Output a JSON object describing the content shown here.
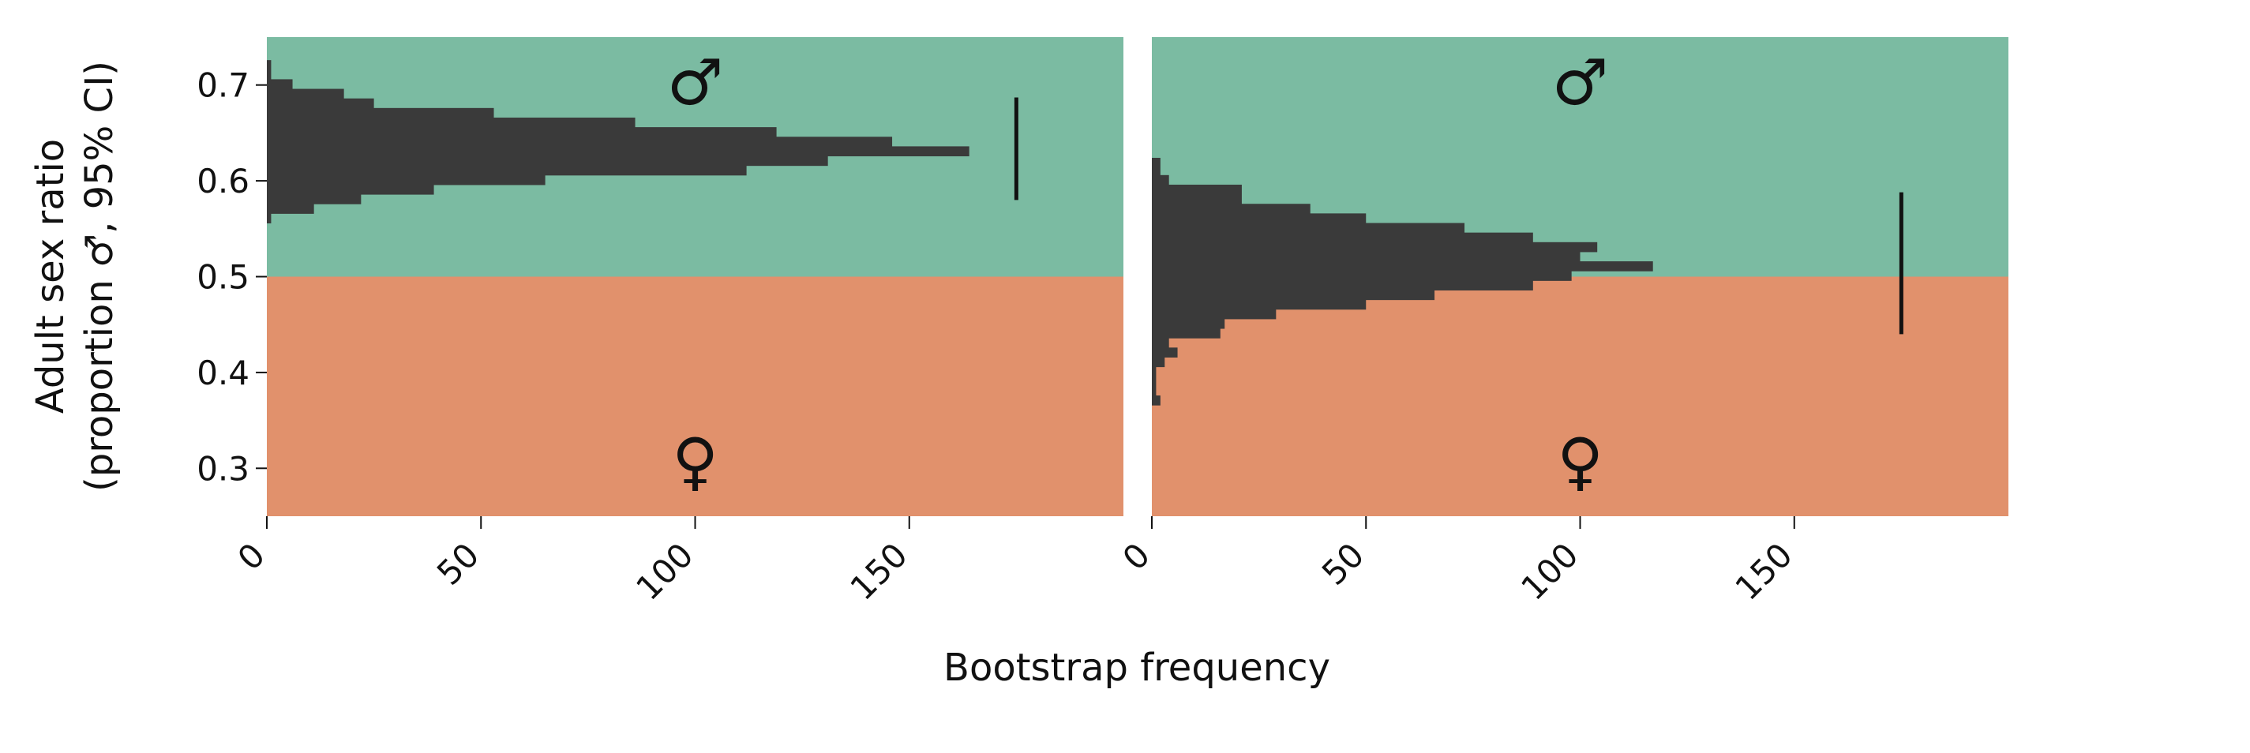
{
  "chart_data": {
    "type": "bar",
    "orientation": "horizontal",
    "xlabel": "Bootstrap frequency",
    "ylabel_line1": "Adult sex ratio",
    "ylabel_line2": "(proportion ♂, 95% CI)",
    "ylim": [
      0.25,
      0.75
    ],
    "y_ticks": [
      0.3,
      0.4,
      0.5,
      0.6,
      0.7
    ],
    "y_tick_labels": [
      "0.3",
      "0.4",
      "0.5",
      "0.6",
      "0.7"
    ],
    "xlim": [
      0,
      200
    ],
    "x_ticks": [
      0,
      50,
      100,
      150
    ],
    "x_tick_labels": [
      "0",
      "50",
      "100",
      "150"
    ],
    "threshold": 0.5,
    "colors": {
      "male_region": "#7bbba2",
      "female_region": "#e1916c",
      "bars": "#3a3a3a",
      "ci_line": "#111111"
    },
    "region_labels": {
      "male": "♂",
      "female": "♀"
    },
    "panels": [
      {
        "bins": [
          {
            "y0": 0.556,
            "y1": 0.566,
            "count": 1
          },
          {
            "y0": 0.566,
            "y1": 0.576,
            "count": 11
          },
          {
            "y0": 0.576,
            "y1": 0.586,
            "count": 22
          },
          {
            "y0": 0.586,
            "y1": 0.596,
            "count": 39
          },
          {
            "y0": 0.596,
            "y1": 0.606,
            "count": 65
          },
          {
            "y0": 0.606,
            "y1": 0.616,
            "count": 112
          },
          {
            "y0": 0.616,
            "y1": 0.626,
            "count": 131
          },
          {
            "y0": 0.626,
            "y1": 0.636,
            "count": 164
          },
          {
            "y0": 0.636,
            "y1": 0.646,
            "count": 146
          },
          {
            "y0": 0.646,
            "y1": 0.656,
            "count": 119
          },
          {
            "y0": 0.656,
            "y1": 0.666,
            "count": 86
          },
          {
            "y0": 0.666,
            "y1": 0.676,
            "count": 53
          },
          {
            "y0": 0.676,
            "y1": 0.686,
            "count": 25
          },
          {
            "y0": 0.686,
            "y1": 0.696,
            "count": 18
          },
          {
            "y0": 0.696,
            "y1": 0.706,
            "count": 6
          },
          {
            "y0": 0.706,
            "y1": 0.726,
            "count": 1
          }
        ],
        "ci": {
          "x": 175,
          "low": 0.58,
          "high": 0.687
        }
      },
      {
        "bins": [
          {
            "y0": 0.366,
            "y1": 0.376,
            "count": 2
          },
          {
            "y0": 0.376,
            "y1": 0.406,
            "count": 1
          },
          {
            "y0": 0.406,
            "y1": 0.416,
            "count": 3
          },
          {
            "y0": 0.416,
            "y1": 0.426,
            "count": 6
          },
          {
            "y0": 0.426,
            "y1": 0.436,
            "count": 4
          },
          {
            "y0": 0.436,
            "y1": 0.446,
            "count": 16
          },
          {
            "y0": 0.446,
            "y1": 0.456,
            "count": 17
          },
          {
            "y0": 0.456,
            "y1": 0.466,
            "count": 29
          },
          {
            "y0": 0.466,
            "y1": 0.476,
            "count": 50
          },
          {
            "y0": 0.476,
            "y1": 0.486,
            "count": 66
          },
          {
            "y0": 0.486,
            "y1": 0.496,
            "count": 89
          },
          {
            "y0": 0.496,
            "y1": 0.506,
            "count": 98
          },
          {
            "y0": 0.506,
            "y1": 0.516,
            "count": 117
          },
          {
            "y0": 0.516,
            "y1": 0.526,
            "count": 100
          },
          {
            "y0": 0.526,
            "y1": 0.536,
            "count": 104
          },
          {
            "y0": 0.536,
            "y1": 0.546,
            "count": 89
          },
          {
            "y0": 0.546,
            "y1": 0.556,
            "count": 73
          },
          {
            "y0": 0.556,
            "y1": 0.566,
            "count": 50
          },
          {
            "y0": 0.566,
            "y1": 0.576,
            "count": 37
          },
          {
            "y0": 0.576,
            "y1": 0.596,
            "count": 21
          },
          {
            "y0": 0.596,
            "y1": 0.606,
            "count": 4
          },
          {
            "y0": 0.606,
            "y1": 0.624,
            "count": 2
          }
        ],
        "ci": {
          "x": 175,
          "low": 0.44,
          "high": 0.588
        }
      }
    ]
  }
}
